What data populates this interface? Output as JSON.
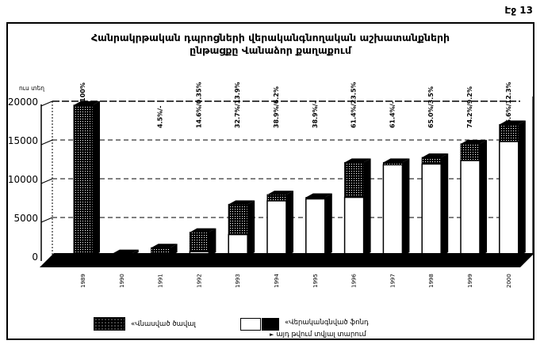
{
  "page": {
    "number": "Էջ 13"
  },
  "title": {
    "line1": "Հանրակրթական դպրոցների վերականգնողական աշխատանքների",
    "line2": "ընթացքը Վանաձոր քաղաքում"
  },
  "y_axis": {
    "unit_label": "ուս տեղ",
    "ticks": [
      20000,
      15000,
      10000,
      5000,
      0
    ]
  },
  "legend": {
    "damaged": {
      "label": "«Վնասված ծավալ"
    },
    "restored": {
      "label": "«Վերականգնված ֆոնդ",
      "arrow": "►",
      "sub_label": "այդ թվում տվյալ տարում"
    }
  },
  "chart_data": {
    "type": "bar",
    "stacked": true,
    "title": "Հանրակրթական դպրոցների վերականգնողական աշխատանքների ընթացքը Վանաձոր քաղաքում",
    "xlabel": "",
    "ylabel": "ուս տեղ",
    "ylim": [
      0,
      20000
    ],
    "ytick_step": 5000,
    "grid": true,
    "legend_position": "bottom",
    "categories": [
      "1989",
      "1990",
      "1991",
      "1992",
      "1993",
      "1994",
      "1995",
      "1996",
      "1997",
      "1998",
      "1999",
      "2000"
    ],
    "series": [
      {
        "name": "Վերականգնված ֆոնդ",
        "fill": "white",
        "values": [
          0,
          0,
          0,
          600,
          2800,
          7150,
          7400,
          7600,
          11800,
          11900,
          12350,
          14800
        ]
      },
      {
        "name": "Վնասված / տվյալ տարում",
        "fill": "stipple-black",
        "values": [
          19500,
          350,
          1100,
          2500,
          3900,
          800,
          200,
          4500,
          300,
          850,
          2150,
          2200
        ]
      }
    ],
    "bar_labels": [
      "100%",
      "",
      "4.5%/-",
      "14.6%/0.35%",
      "32.7%/13.9%",
      "38.9%/6.2%",
      "38.9%/-",
      "61.4%/23.5%",
      "61.4%/-",
      "65.0%/3.5%",
      "74.2%/9.2%",
      "86.6%/12.3%"
    ]
  }
}
